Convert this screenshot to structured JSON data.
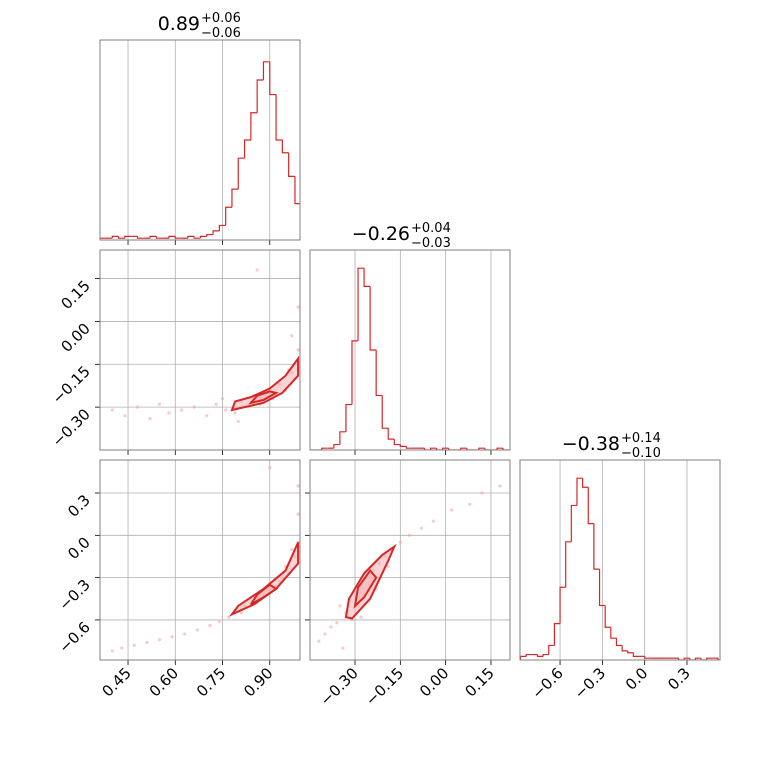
{
  "chart_data": [
    {
      "type": "histogram",
      "title": "0.89",
      "title_plus": "+0.06",
      "title_minus": "−0.06",
      "color": "#d62728",
      "bins": [
        0.36,
        0.38,
        0.4,
        0.42,
        0.44,
        0.46,
        0.48,
        0.5,
        0.52,
        0.54,
        0.56,
        0.58,
        0.6,
        0.62,
        0.64,
        0.66,
        0.68,
        0.7,
        0.72,
        0.74,
        0.76,
        0.78,
        0.8,
        0.82,
        0.84,
        0.86,
        0.88,
        0.9,
        0.92,
        0.94,
        0.96,
        0.98,
        1.0
      ],
      "values": [
        1,
        1,
        2,
        1,
        2,
        2,
        1,
        1,
        2,
        1,
        1,
        2,
        1,
        1,
        2,
        1,
        2,
        3,
        5,
        8,
        18,
        28,
        45,
        55,
        70,
        88,
        98,
        80,
        55,
        48,
        35,
        20
      ],
      "xlim": [
        0.361,
        0.996
      ],
      "ylim": [
        0,
        110
      ],
      "xticks": [
        0.45,
        0.6,
        0.75,
        0.9
      ],
      "xtick_labels": false,
      "grid": true
    },
    {
      "type": "scatter",
      "color": "#d62728",
      "point_color": "#f4a6a6",
      "fill_color": "#f2b0b0",
      "x": [
        0.4,
        0.44,
        0.48,
        0.52,
        0.55,
        0.58,
        0.62,
        0.66,
        0.7,
        0.73,
        0.76,
        0.79,
        0.81,
        0.83,
        0.85,
        0.87,
        0.89,
        0.91,
        0.93,
        0.95,
        0.97,
        0.98,
        0.99,
        0.99,
        0.97,
        0.86,
        0.8,
        0.75,
        0.92,
        0.96
      ],
      "y": [
        -0.31,
        -0.33,
        -0.3,
        -0.34,
        -0.29,
        -0.32,
        -0.31,
        -0.3,
        -0.33,
        -0.29,
        -0.31,
        -0.32,
        -0.28,
        -0.3,
        -0.26,
        -0.29,
        -0.25,
        -0.27,
        -0.22,
        -0.24,
        -0.18,
        -0.2,
        -0.1,
        0.05,
        -0.05,
        0.18,
        -0.35,
        -0.27,
        -0.26,
        -0.17
      ],
      "contours": [
        {
          "x": [
            0.78,
            0.82,
            0.88,
            0.94,
            0.99,
            0.99,
            0.95,
            0.9,
            0.84,
            0.79,
            0.78
          ],
          "y": [
            -0.31,
            -0.3,
            -0.285,
            -0.25,
            -0.19,
            -0.13,
            -0.19,
            -0.235,
            -0.265,
            -0.28,
            -0.31
          ]
        },
        {
          "x": [
            0.84,
            0.88,
            0.92,
            0.9,
            0.86,
            0.84
          ],
          "y": [
            -0.285,
            -0.275,
            -0.25,
            -0.245,
            -0.26,
            -0.285
          ]
        }
      ],
      "xlim": [
        0.361,
        0.996
      ],
      "ylim": [
        -0.45,
        0.25
      ],
      "xticks": [
        0.45,
        0.6,
        0.75,
        0.9
      ],
      "yticks": [
        0.15,
        {
          "value": 0,
          "label": "0.00"
        },
        {
          "value": -0.15,
          "label": "−0.15"
        },
        {
          "value": -0.3,
          "label": "−0.30"
        }
      ],
      "xtick_labels": false,
      "ytick_labels": true,
      "grid": true
    },
    {
      "type": "histogram",
      "title": "−0.26",
      "title_plus": "+0.04",
      "title_minus": "−0.03",
      "color": "#d62728",
      "bins": [
        -0.45,
        -0.43,
        -0.41,
        -0.39,
        -0.37,
        -0.35,
        -0.33,
        -0.31,
        -0.29,
        -0.27,
        -0.25,
        -0.23,
        -0.21,
        -0.19,
        -0.17,
        -0.15,
        -0.13,
        -0.11,
        -0.09,
        -0.07,
        -0.05,
        -0.03,
        -0.01,
        0.01,
        0.03,
        0.05,
        0.07,
        0.09,
        0.11,
        0.13,
        0.15,
        0.17,
        0.19,
        0.21
      ],
      "values": [
        0,
        0,
        1,
        1,
        3,
        10,
        25,
        60,
        100,
        90,
        55,
        30,
        12,
        6,
        3,
        2,
        1,
        1,
        1,
        0,
        1,
        0,
        1,
        0,
        0,
        1,
        0,
        0,
        1,
        0,
        0,
        1,
        0
      ],
      "xlim": [
        -0.449,
        0.213
      ],
      "ylim": [
        0,
        110
      ],
      "xticks": [
        -0.3,
        -0.15,
        0,
        0.15
      ],
      "xtick_labels": false,
      "grid": true
    },
    {
      "type": "scatter",
      "color": "#d62728",
      "point_color": "#f4a6a6",
      "fill_color": "#f2b0b0",
      "x": [
        0.4,
        0.43,
        0.47,
        0.51,
        0.55,
        0.59,
        0.63,
        0.67,
        0.71,
        0.74,
        0.77,
        0.8,
        0.82,
        0.84,
        0.86,
        0.88,
        0.9,
        0.92,
        0.94,
        0.96,
        0.98,
        0.99,
        0.99,
        0.99,
        0.97,
        0.9,
        0.85,
        0.93,
        0.81,
        0.95
      ],
      "y": [
        -0.82,
        -0.8,
        -0.78,
        -0.76,
        -0.74,
        -0.72,
        -0.7,
        -0.67,
        -0.64,
        -0.61,
        -0.58,
        -0.54,
        -0.5,
        -0.49,
        -0.44,
        -0.43,
        -0.38,
        -0.36,
        -0.3,
        -0.27,
        -0.15,
        -0.05,
        0.15,
        0.35,
        -0.1,
        0.48,
        -0.47,
        -0.33,
        -0.55,
        -0.22
      ],
      "contours": [
        {
          "x": [
            0.78,
            0.85,
            0.92,
            0.99,
            0.99,
            0.95,
            0.88,
            0.8,
            0.78
          ],
          "y": [
            -0.56,
            -0.49,
            -0.38,
            -0.2,
            -0.05,
            -0.25,
            -0.38,
            -0.5,
            -0.56
          ]
        },
        {
          "x": [
            0.84,
            0.88,
            0.92,
            0.9,
            0.86,
            0.84
          ],
          "y": [
            -0.49,
            -0.44,
            -0.38,
            -0.35,
            -0.42,
            -0.49
          ]
        }
      ],
      "xlim": [
        0.361,
        0.996
      ],
      "ylim": [
        -0.884,
        0.534
      ],
      "xticks": [
        0.45,
        {
          "value": 0.6,
          "label": "0.60"
        },
        0.75,
        {
          "value": 0.9,
          "label": "0.90"
        }
      ],
      "yticks": [
        0.3,
        {
          "value": 0,
          "label": "0.0"
        },
        {
          "value": -0.3,
          "label": "−0.3"
        },
        {
          "value": -0.6,
          "label": "−0.6"
        }
      ],
      "xtick_labels": true,
      "ytick_labels": true,
      "grid": true
    },
    {
      "type": "scatter",
      "color": "#d62728",
      "point_color": "#f4a6a6",
      "fill_color": "#f2b0b0",
      "x": [
        -0.42,
        -0.4,
        -0.38,
        -0.36,
        -0.35,
        -0.33,
        -0.32,
        -0.31,
        -0.3,
        -0.29,
        -0.28,
        -0.27,
        -0.26,
        -0.25,
        -0.24,
        -0.22,
        -0.2,
        -0.18,
        -0.15,
        -0.12,
        -0.08,
        -0.04,
        0.02,
        0.08,
        0.12,
        0.18,
        -0.34,
        -0.28,
        -0.23,
        -0.19
      ],
      "y": [
        -0.75,
        -0.7,
        -0.65,
        -0.62,
        -0.5,
        -0.55,
        -0.45,
        -0.6,
        -0.4,
        -0.5,
        -0.35,
        -0.42,
        -0.3,
        -0.35,
        -0.25,
        -0.2,
        -0.15,
        -0.1,
        -0.05,
        0.0,
        0.05,
        0.1,
        0.18,
        0.22,
        0.3,
        0.35,
        -0.8,
        -0.58,
        -0.38,
        -0.22
      ],
      "contours": [
        {
          "x": [
            -0.33,
            -0.31,
            -0.25,
            -0.19,
            -0.17,
            -0.21,
            -0.27,
            -0.32,
            -0.33
          ],
          "y": [
            -0.58,
            -0.59,
            -0.45,
            -0.18,
            -0.08,
            -0.14,
            -0.27,
            -0.45,
            -0.58
          ]
        },
        {
          "x": [
            -0.3,
            -0.27,
            -0.23,
            -0.25,
            -0.29,
            -0.3
          ],
          "y": [
            -0.5,
            -0.44,
            -0.3,
            -0.25,
            -0.37,
            -0.5
          ]
        }
      ],
      "xlim": [
        -0.449,
        0.213
      ],
      "ylim": [
        -0.884,
        0.534
      ],
      "xticks": [
        {
          "value": -0.3,
          "label": "−0.30"
        },
        {
          "value": -0.15,
          "label": "−0.15"
        },
        {
          "value": 0,
          "label": "0.00"
        },
        0.15
      ],
      "yticks": [
        0.3,
        0,
        -0.3,
        -0.6
      ],
      "xtick_labels": true,
      "ytick_labels": false,
      "grid": true
    },
    {
      "type": "histogram",
      "title": "−0.38",
      "title_plus": "+0.14",
      "title_minus": "−0.10",
      "color": "#d62728",
      "bins": [
        -0.88,
        -0.84,
        -0.8,
        -0.76,
        -0.72,
        -0.68,
        -0.64,
        -0.6,
        -0.56,
        -0.52,
        -0.48,
        -0.44,
        -0.4,
        -0.36,
        -0.32,
        -0.28,
        -0.24,
        -0.2,
        -0.16,
        -0.12,
        -0.08,
        -0.04,
        0.0,
        0.04,
        0.08,
        0.12,
        0.16,
        0.2,
        0.24,
        0.28,
        0.32,
        0.36,
        0.4,
        0.44,
        0.48,
        0.52
      ],
      "values": [
        2,
        3,
        3,
        2,
        3,
        8,
        20,
        40,
        65,
        85,
        100,
        95,
        75,
        50,
        30,
        18,
        12,
        8,
        5,
        4,
        2,
        2,
        1,
        1,
        1,
        1,
        1,
        1,
        0,
        1,
        0,
        1,
        0,
        1,
        1
      ],
      "xlim": [
        -0.884,
        0.534
      ],
      "ylim": [
        0,
        110
      ],
      "xticks": [
        {
          "value": -0.6,
          "label": "−0.6"
        },
        {
          "value": -0.3,
          "label": "−0.3"
        },
        {
          "value": 0,
          "label": "0.0"
        },
        0.3
      ],
      "xtick_labels": true,
      "grid": true
    }
  ]
}
